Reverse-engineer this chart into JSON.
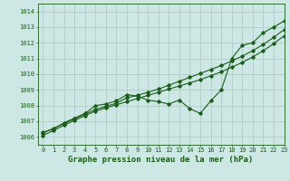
{
  "title": "Graphe pression niveau de la mer (hPa)",
  "xlim": [
    -0.5,
    23
  ],
  "ylim": [
    1005.5,
    1014.5
  ],
  "yticks": [
    1006,
    1007,
    1008,
    1009,
    1010,
    1011,
    1012,
    1013,
    1014
  ],
  "xticks": [
    0,
    1,
    2,
    3,
    4,
    5,
    6,
    7,
    8,
    9,
    10,
    11,
    12,
    13,
    14,
    15,
    16,
    17,
    18,
    19,
    20,
    21,
    22,
    23
  ],
  "background_color": "#cde8e4",
  "grid_color": "#b0ccc8",
  "line_color": "#1a5c1a",
  "series_main": [
    1006.3,
    1006.5,
    1006.9,
    1007.2,
    1007.5,
    1008.0,
    1008.1,
    1008.3,
    1008.7,
    1008.6,
    1008.35,
    1008.25,
    1008.1,
    1008.35,
    1007.8,
    1007.5,
    1008.3,
    1009.0,
    1011.0,
    1011.85,
    1012.0,
    1012.65,
    1013.0,
    1013.4
  ],
  "series_linear1": [
    1006.1,
    1006.4,
    1006.75,
    1007.05,
    1007.35,
    1007.65,
    1007.85,
    1008.05,
    1008.25,
    1008.45,
    1008.65,
    1008.85,
    1009.05,
    1009.25,
    1009.45,
    1009.65,
    1009.9,
    1010.15,
    1010.45,
    1010.75,
    1011.1,
    1011.5,
    1011.95,
    1012.45
  ],
  "series_linear2": [
    1006.25,
    1006.55,
    1006.85,
    1007.15,
    1007.45,
    1007.75,
    1007.95,
    1008.15,
    1008.5,
    1008.65,
    1008.85,
    1009.05,
    1009.3,
    1009.55,
    1009.8,
    1010.05,
    1010.3,
    1010.55,
    1010.85,
    1011.15,
    1011.5,
    1011.9,
    1012.35,
    1012.85
  ],
  "marker": "D",
  "marker_size": 1.8,
  "linewidth": 0.8,
  "title_fontsize": 6.5,
  "tick_fontsize": 5.0
}
